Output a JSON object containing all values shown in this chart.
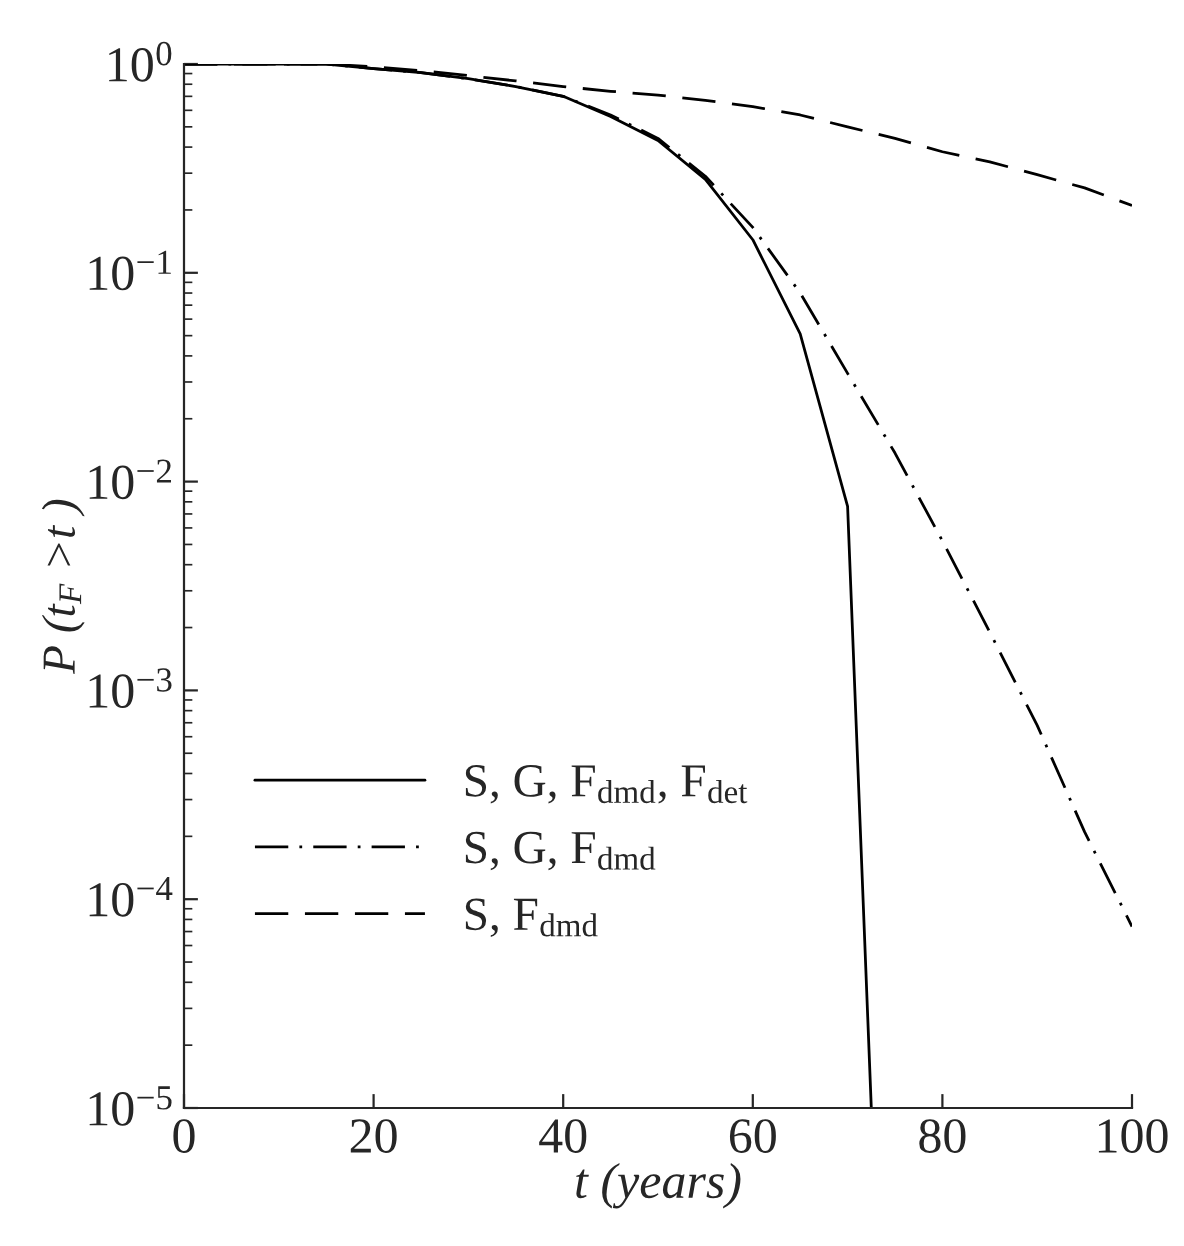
{
  "chart_data": {
    "type": "line",
    "xlabel": "t (years)",
    "ylabel": "P (t$_{F}$ >t )",
    "log": "y",
    "xlim": [
      0,
      100
    ],
    "xticks": [
      0,
      20,
      40,
      60,
      80,
      100
    ],
    "ylim": [
      1e-05,
      1
    ],
    "yticks": [
      {
        "value": 1e-05,
        "label": "10$^{−5}$"
      },
      {
        "value": 0.0001,
        "label": "10$^{−4}$"
      },
      {
        "value": 0.001,
        "label": "10$^{−3}$"
      },
      {
        "value": 0.01,
        "label": "10$^{−2}$"
      },
      {
        "value": 0.1,
        "label": "10$^{−1}$"
      },
      {
        "value": 1,
        "label": "10$^{0}$"
      }
    ],
    "legend": "lower left",
    "grid": false,
    "series": [
      {
        "name": "S, G, F$_{dmd}$, F$_{det}$",
        "color": "#000000",
        "line_style": "solid",
        "x": [
          0,
          5,
          10,
          15,
          20,
          25,
          30,
          35,
          40,
          45,
          50,
          55,
          60,
          65,
          70,
          72.5
        ],
        "values": [
          1,
          1,
          1,
          1,
          0.95,
          0.91,
          0.85,
          0.78,
          0.7,
          0.56,
          0.43,
          0.28,
          0.144,
          0.051,
          0.0076,
          1e-05
        ]
      },
      {
        "name": "S, G, F$_{dmd}$",
        "color": "#000000",
        "line_style": "dashdot",
        "x": [
          0,
          5,
          10,
          15,
          20,
          25,
          30,
          35,
          40,
          45,
          50,
          55,
          60,
          65,
          70,
          75,
          80,
          85,
          90,
          95,
          100
        ],
        "values": [
          1,
          1,
          1,
          1,
          0.95,
          0.91,
          0.85,
          0.78,
          0.7,
          0.57,
          0.44,
          0.29,
          0.165,
          0.08,
          0.033,
          0.0137,
          0.0052,
          0.0019,
          0.00068,
          0.00021,
          7.4e-05
        ]
      },
      {
        "name": "S, F$_{dmd}$",
        "color": "#000000",
        "line_style": "dashed",
        "x": [
          0,
          5,
          10,
          15,
          20,
          25,
          30,
          35,
          40,
          45,
          50,
          55,
          60,
          65,
          70,
          75,
          80,
          85,
          90,
          95,
          100
        ],
        "values": [
          1,
          1,
          1,
          1,
          0.97,
          0.93,
          0.88,
          0.83,
          0.78,
          0.74,
          0.71,
          0.67,
          0.625,
          0.57,
          0.5,
          0.44,
          0.38,
          0.34,
          0.295,
          0.255,
          0.21
        ]
      }
    ]
  }
}
